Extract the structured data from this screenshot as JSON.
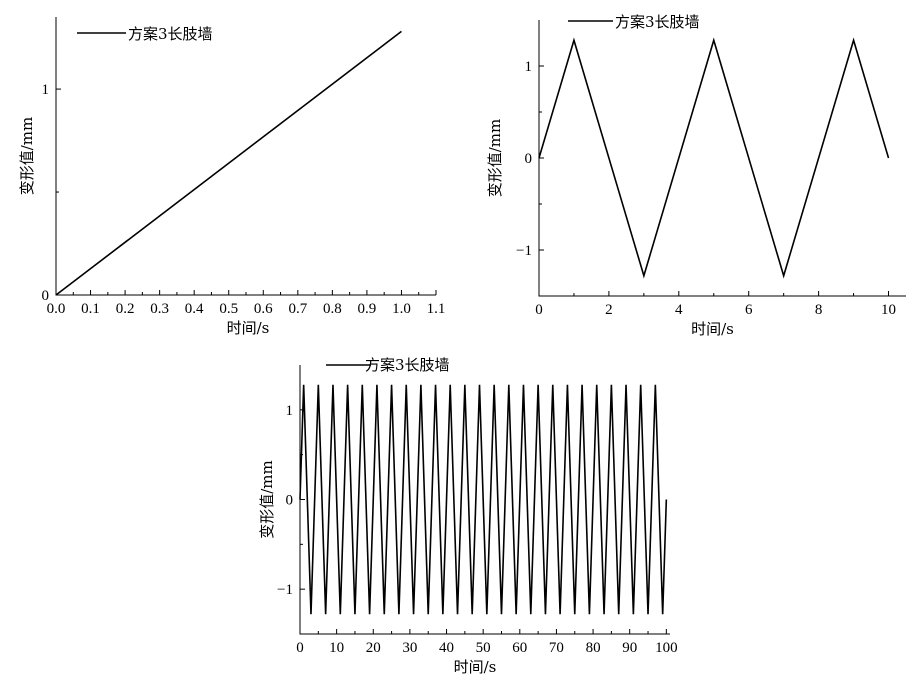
{
  "chart_data": [
    {
      "type": "line",
      "xlabel": "时间/s",
      "ylabel": "变形值/mm",
      "xlim": [
        0,
        1.1
      ],
      "ylim": [
        0,
        1.35
      ],
      "xticks": [
        0.0,
        0.1,
        0.2,
        0.3,
        0.4,
        0.5,
        0.6,
        0.7,
        0.8,
        0.9,
        1.0,
        1.1
      ],
      "xtick_labels": [
        "0.0",
        "0.1",
        "0.2",
        "0.3",
        "0.4",
        "0.5",
        "0.6",
        "0.7",
        "0.8",
        "0.9",
        "1.0",
        "1.1"
      ],
      "yticks": [
        0,
        1
      ],
      "ytick_labels": [
        "0",
        "1"
      ],
      "legend": "top-left",
      "grid": false,
      "series": [
        {
          "name": "方案3长肢墙",
          "x": [
            0,
            1.0
          ],
          "y": [
            0,
            1.28
          ]
        }
      ]
    },
    {
      "type": "line",
      "xlabel": "时间/s",
      "ylabel": "变形值/mm",
      "xlim": [
        0,
        10.5
      ],
      "ylim": [
        -1.5,
        1.5
      ],
      "xticks": [
        0,
        2,
        4,
        6,
        8,
        10
      ],
      "xtick_labels": [
        "0",
        "2",
        "4",
        "6",
        "8",
        "10"
      ],
      "yticks": [
        -1,
        0,
        1
      ],
      "ytick_labels": [
        "−1",
        "0",
        "1"
      ],
      "legend": "top-left",
      "grid": false,
      "series": [
        {
          "name": "方案3长肢墙",
          "x": [
            0,
            1,
            3,
            5,
            7,
            9,
            10
          ],
          "y": [
            0,
            1.28,
            -1.28,
            1.28,
            -1.28,
            1.28,
            0
          ]
        }
      ]
    },
    {
      "type": "line",
      "xlabel": "时间/s",
      "ylabel": "变形值/mm",
      "xlim": [
        0,
        101
      ],
      "ylim": [
        -1.5,
        1.5
      ],
      "xticks": [
        0,
        10,
        20,
        30,
        40,
        50,
        60,
        70,
        80,
        90,
        100
      ],
      "xtick_labels": [
        "0",
        "10",
        "20",
        "30",
        "40",
        "50",
        "60",
        "70",
        "80",
        "90",
        "100"
      ],
      "yticks": [
        -1,
        0,
        1
      ],
      "ytick_labels": [
        "−1",
        "0",
        "1"
      ],
      "legend": "top-left",
      "grid": false,
      "series": [
        {
          "name": "方案3长肢墙",
          "period": 4,
          "amplitude": 1.28,
          "x": [
            0,
            1,
            3,
            5,
            7,
            9,
            11,
            13,
            15,
            17,
            19,
            21,
            23,
            25,
            27,
            29,
            31,
            33,
            35,
            37,
            39,
            41,
            43,
            45,
            47,
            49,
            51,
            53,
            55,
            57,
            59,
            61,
            63,
            65,
            67,
            69,
            71,
            73,
            75,
            77,
            79,
            81,
            83,
            85,
            87,
            89,
            91,
            93,
            95,
            97,
            99,
            100
          ],
          "y": [
            0,
            1.28,
            -1.28,
            1.28,
            -1.28,
            1.28,
            -1.28,
            1.28,
            -1.28,
            1.28,
            -1.28,
            1.28,
            -1.28,
            1.28,
            -1.28,
            1.28,
            -1.28,
            1.28,
            -1.28,
            1.28,
            -1.28,
            1.28,
            -1.28,
            1.28,
            -1.28,
            1.28,
            -1.28,
            1.28,
            -1.28,
            1.28,
            -1.28,
            1.28,
            -1.28,
            1.28,
            -1.28,
            1.28,
            -1.28,
            1.28,
            -1.28,
            1.28,
            -1.28,
            1.28,
            -1.28,
            1.28,
            -1.28,
            1.28,
            -1.28,
            1.28,
            -1.28,
            1.28,
            -1.28,
            0
          ]
        }
      ]
    }
  ]
}
